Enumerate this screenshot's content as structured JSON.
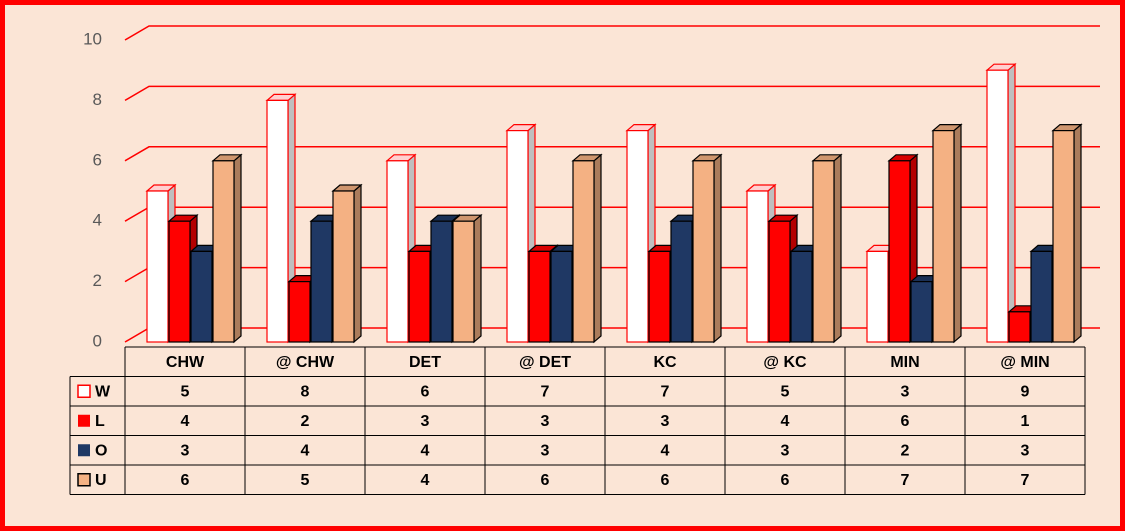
{
  "chart_data": {
    "type": "bar",
    "categories": [
      "CHW",
      "@ CHW",
      "DET",
      "@ DET",
      "KC",
      "@ KC",
      "MIN",
      "@ MIN"
    ],
    "series": [
      {
        "name": "W",
        "color": "#ffffff",
        "values": [
          5,
          8,
          6,
          7,
          7,
          5,
          3,
          9
        ]
      },
      {
        "name": "L",
        "color": "#ff0000",
        "values": [
          4,
          2,
          3,
          3,
          3,
          4,
          6,
          1
        ]
      },
      {
        "name": "O",
        "color": "#1f3864",
        "values": [
          3,
          4,
          4,
          3,
          4,
          3,
          2,
          3
        ]
      },
      {
        "name": "U",
        "color": "#f4b183",
        "values": [
          6,
          5,
          4,
          6,
          6,
          6,
          7,
          7
        ]
      }
    ],
    "ylim": [
      0,
      10
    ],
    "yticks": [
      0,
      2,
      4,
      6,
      8,
      10
    ],
    "grid": true,
    "data_table": true
  }
}
